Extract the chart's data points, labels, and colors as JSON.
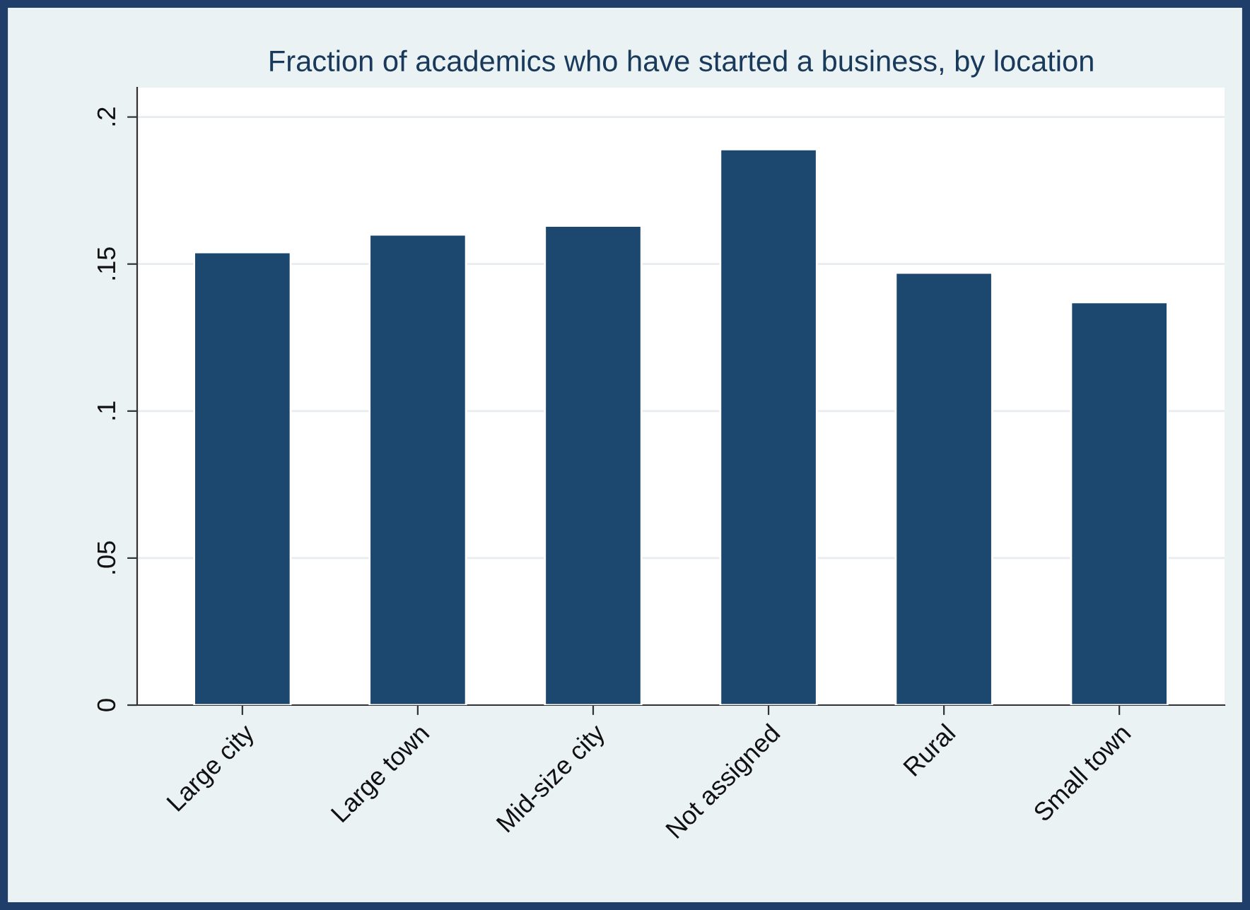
{
  "chart_data": {
    "type": "bar",
    "title": "Fraction of academics who have started a business, by location",
    "categories": [
      "Large city",
      "Large town",
      "Mid-size city",
      "Not assigned",
      "Rural",
      "Small town"
    ],
    "values": [
      0.154,
      0.16,
      0.163,
      0.189,
      0.147,
      0.137
    ],
    "color": "#1c476e",
    "ylim": [
      0,
      0.21
    ],
    "yticks": [
      0,
      {
        "value": 0.05,
        "label": ".05"
      },
      {
        "value": 0.1,
        "label": ".1"
      },
      {
        "value": 0.15,
        "label": ".15"
      },
      {
        "value": 0.2,
        "label": ".2"
      }
    ],
    "grid": "y"
  }
}
